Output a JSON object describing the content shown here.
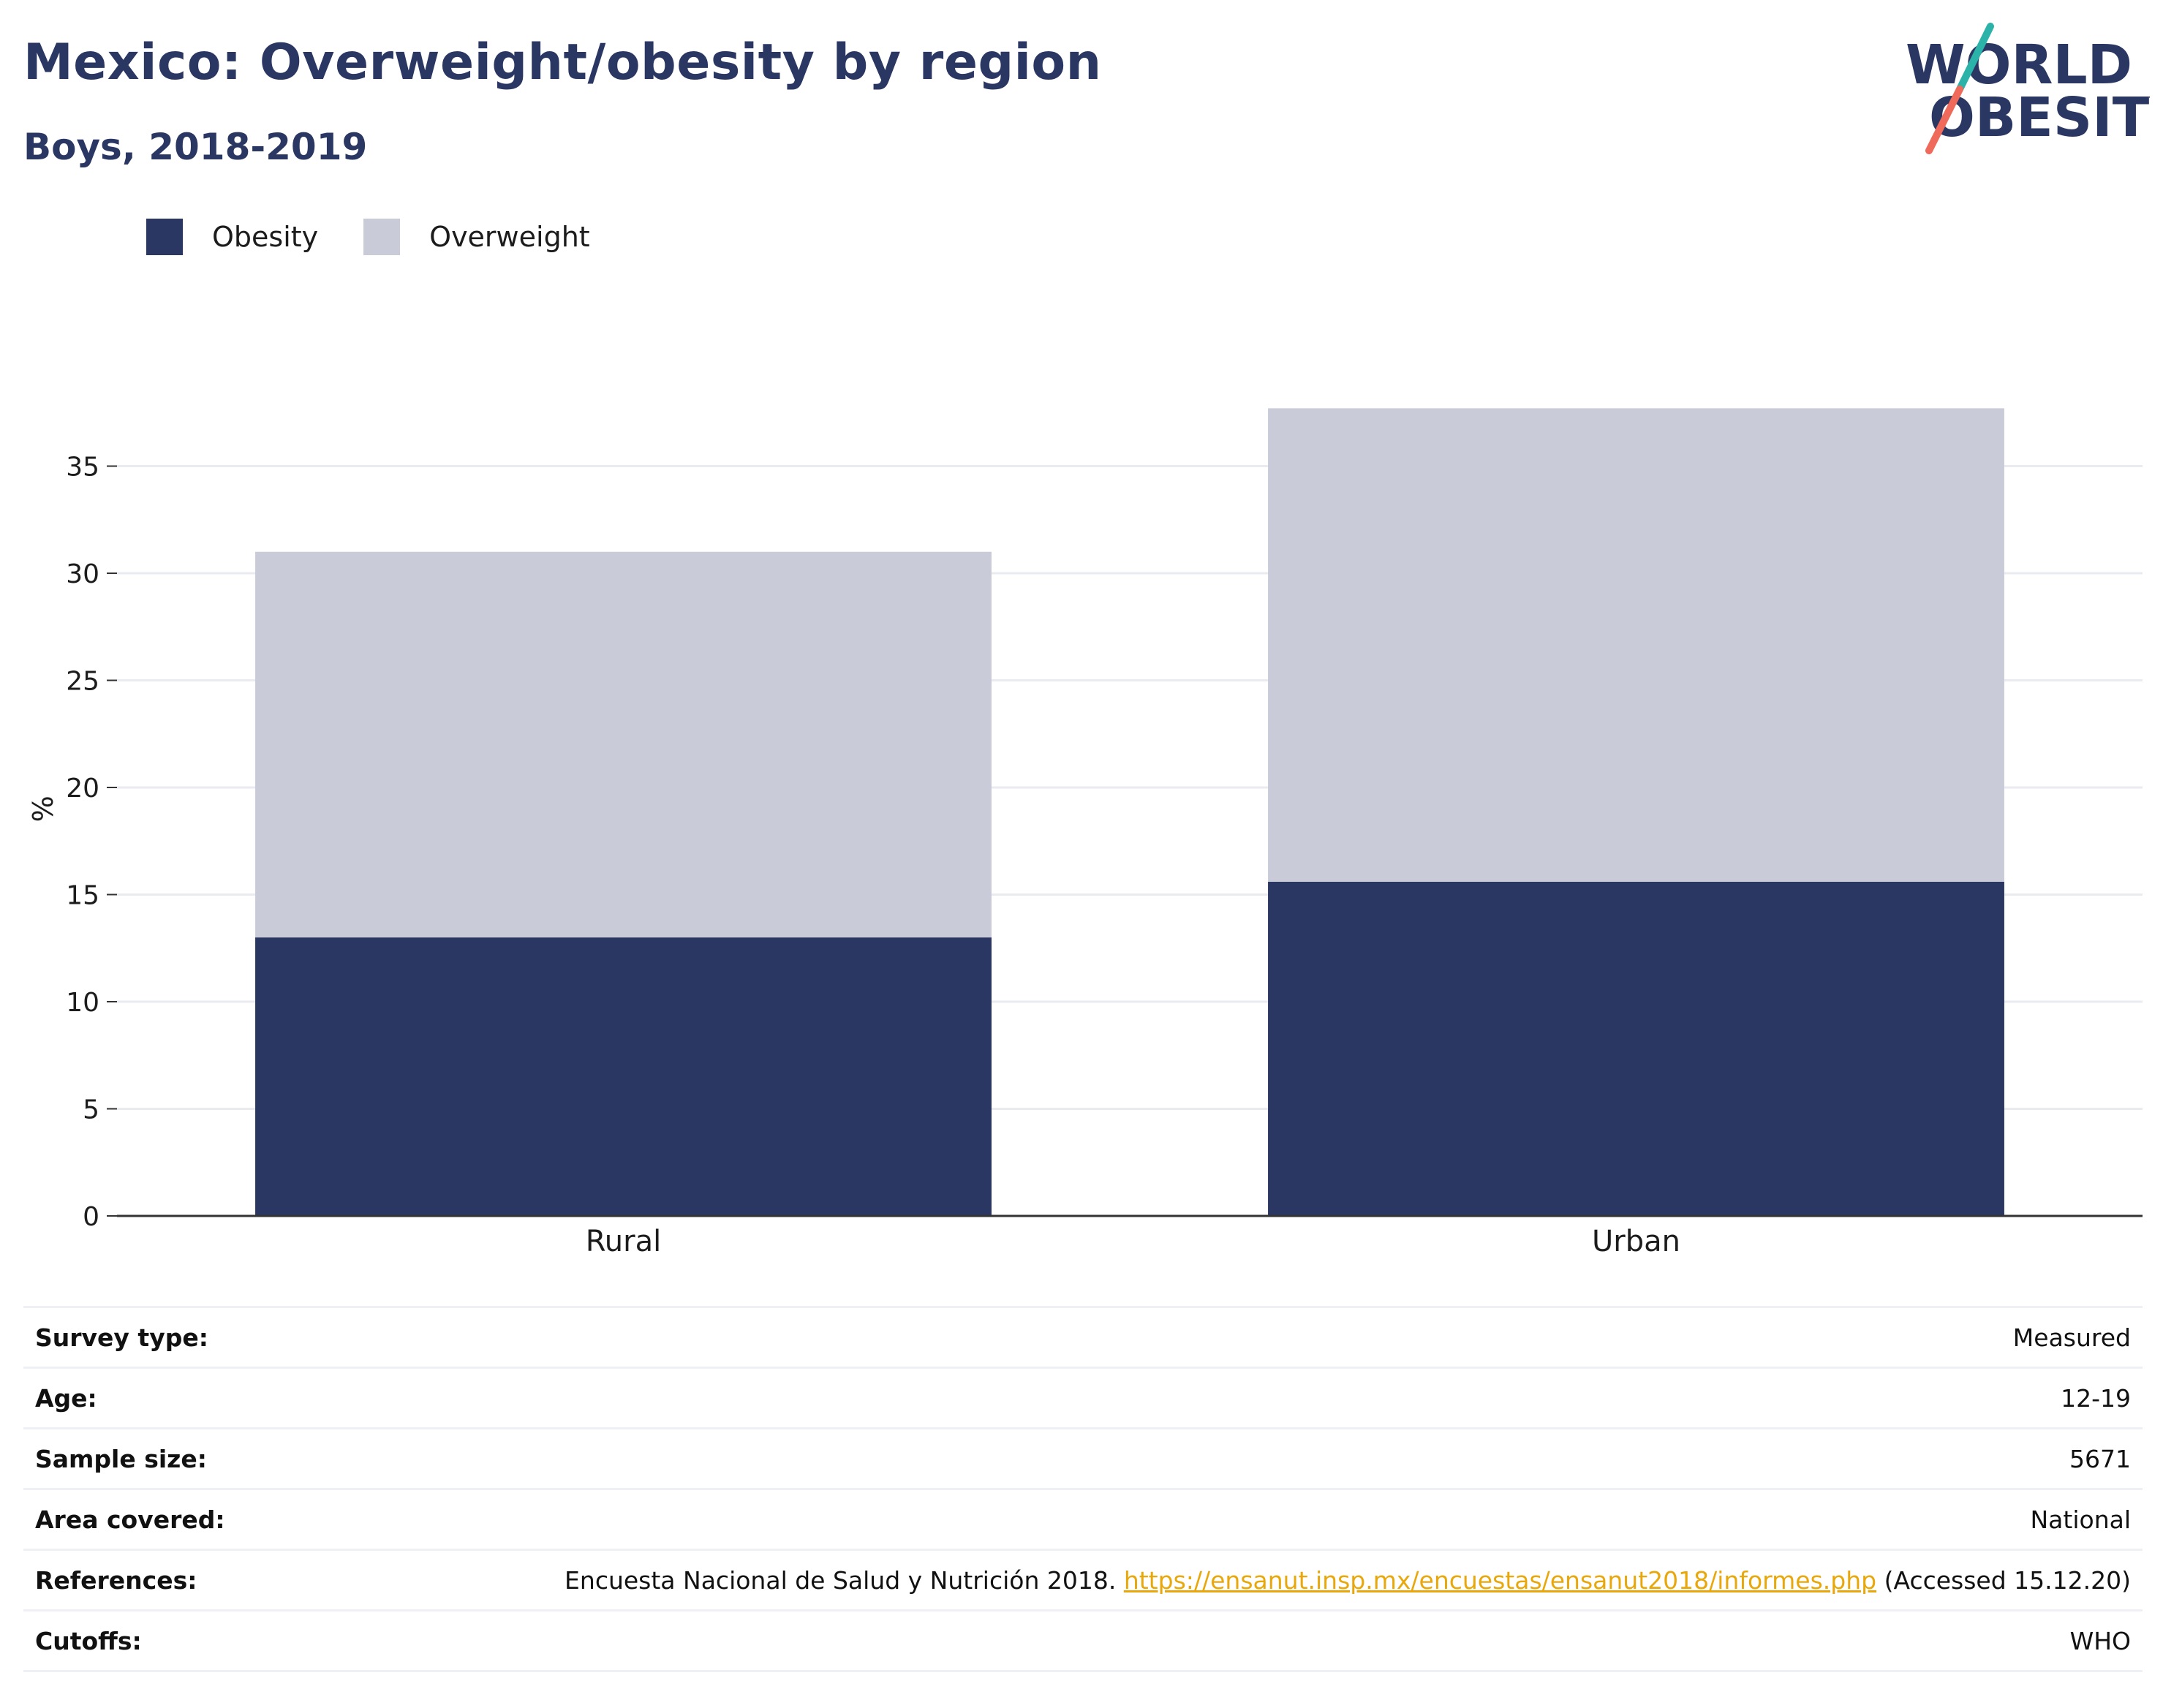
{
  "header": {
    "title": "Mexico: Overweight/obesity by region",
    "subtitle": "Boys, 2018-2019"
  },
  "logo": {
    "line1": "WORLD",
    "line2": "OBESITY",
    "icon": "world-obesity-logo"
  },
  "colors": {
    "obesity": "#2b3763",
    "overweight": "#c9ccd8",
    "title": "#2b3763",
    "grid": "#e9ebf1",
    "link": "#e8a80c",
    "logo_teal": "#2bb3aa",
    "logo_coral": "#ef6a5a"
  },
  "legend": [
    {
      "label": "Obesity",
      "color": "#2b3763"
    },
    {
      "label": "Overweight",
      "color": "#c9ccd8"
    }
  ],
  "chart_data": {
    "type": "bar",
    "stacked": true,
    "categories": [
      "Rural",
      "Urban"
    ],
    "series": [
      {
        "name": "Obesity",
        "values": [
          13.0,
          15.6
        ]
      },
      {
        "name": "Overweight",
        "values": [
          18.0,
          22.1
        ]
      }
    ],
    "ylabel": "%",
    "xlabel": "",
    "ylim": [
      0,
      38
    ],
    "yticks": [
      0,
      5,
      10,
      15,
      20,
      25,
      30,
      35
    ],
    "grid": true,
    "legend_position": "top-left"
  },
  "meta": [
    {
      "key": "Survey type:",
      "value": "Measured"
    },
    {
      "key": "Age:",
      "value": "12-19"
    },
    {
      "key": "Sample size:",
      "value": "5671"
    },
    {
      "key": "Area covered:",
      "value": "National"
    },
    {
      "key": "References:",
      "value_prefix": "Encuesta Nacional de Salud y Nutrición 2018. ",
      "link": "https://ensanut.insp.mx/encuestas/ensanut2018/informes.php",
      "value_suffix": " (Accessed 15.12.20)"
    },
    {
      "key": "Cutoffs:",
      "value": "WHO"
    }
  ]
}
